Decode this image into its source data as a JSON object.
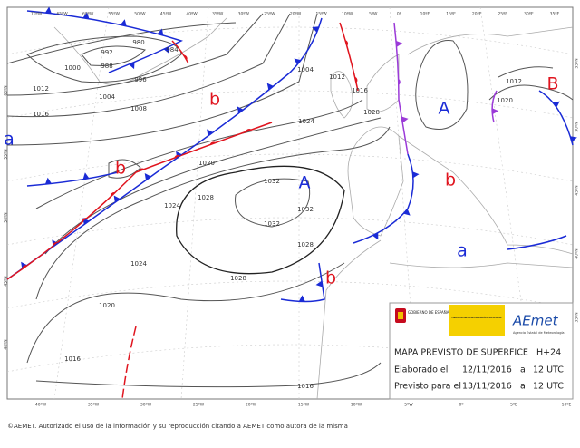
{
  "map": {
    "top_longitudes": [
      "70ºW",
      "65ºW",
      "60ºW",
      "55ºW",
      "50ºW",
      "45ºW",
      "40ºW",
      "35ºW",
      "30ºW",
      "25ºW",
      "20ºW",
      "15ºW",
      "10ºW",
      "5ºW",
      "0º",
      "10ºE",
      "15ºE",
      "20ºE",
      "25ºE",
      "30ºE",
      "35ºE"
    ],
    "bottom_longitudes": [
      "40ºW",
      "35ºW",
      "30ºW",
      "25ºW",
      "20ºW",
      "15ºW",
      "10ºW",
      "5ºW",
      "0º",
      "5ºE",
      "10ºE"
    ],
    "left_latitudes": [
      "60ºN",
      "55ºN",
      "50ºN",
      "45ºN",
      "40ºN"
    ],
    "right_latitudes": [
      "55ºN",
      "50ºN",
      "45ºN",
      "40ºN",
      "35ºN"
    ],
    "isobar_labels": [
      "1000",
      "992",
      "988",
      "980",
      "984",
      "996",
      "1004",
      "1012",
      "1016",
      "1008",
      "1004",
      "1012",
      "1016",
      "1024",
      "1020",
      "1028",
      "1024",
      "1032",
      "1032",
      "1032",
      "1028",
      "1028",
      "1024",
      "1020",
      "1016",
      "1016",
      "1028",
      "1020",
      "1012"
    ],
    "centers": [
      "A",
      "A",
      "B",
      "b",
      "b",
      "b",
      "b",
      "a",
      "a"
    ]
  },
  "info": {
    "gov": "GOBIERNO DE ESPAÑA",
    "ministry": "MINISTERIO DE AGRICULTURA Y ALIMENTACIÓN Y MEDIO AMBIENTE",
    "brand": "AEmet",
    "agency": "Agencia Estatal de Meteorología",
    "title": "MAPA PREVISTO DE SUPERFICE",
    "range": "H+24",
    "made_label": "Elaborado el",
    "made_date": "12/11/2016",
    "made_at": "a",
    "made_time": "12 UTC",
    "valid_label": "Previsto para el",
    "valid_date": "13/11/2016",
    "valid_at": "a",
    "valid_time": "12 UTC"
  },
  "footer": "©AEMET. Autorizado el uso de la información y su reproducción citando a AEMET como autora de la misma"
}
